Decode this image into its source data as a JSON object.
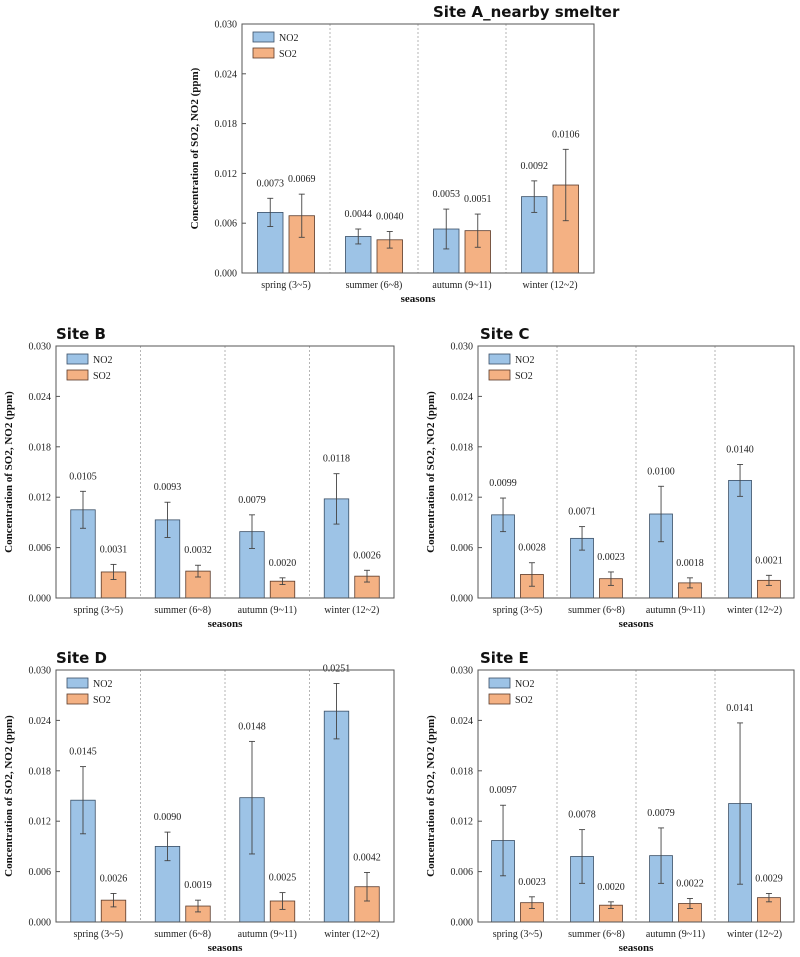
{
  "chart_data": [
    {
      "type": "bar",
      "title": "Site A_nearby smelter",
      "categories": [
        "spring (3~5)",
        "summer (6~8)",
        "autumn (9~11)",
        "winter (12~2)"
      ],
      "xlabel": "seasons",
      "ylabel": "Concentration of SO2, NO2 (ppm)",
      "ylim": [
        0,
        0.03
      ],
      "yticks": [
        "0.000",
        "0.006",
        "0.012",
        "0.018",
        "0.024",
        "0.030"
      ],
      "legend_position": "top-left",
      "series": [
        {
          "name": "NO2",
          "values": [
            0.0073,
            0.0044,
            0.0053,
            0.0092
          ],
          "labels": [
            "0.0073",
            "0.0044",
            "0.0053",
            "0.0092"
          ],
          "errors": [
            0.0017,
            0.0009,
            0.0024,
            0.0019
          ]
        },
        {
          "name": "SO2",
          "values": [
            0.0069,
            0.004,
            0.0051,
            0.0106
          ],
          "labels": [
            "0.0069",
            "0.0040",
            "0.0051",
            "0.0106"
          ],
          "errors": [
            0.0026,
            0.001,
            0.002,
            0.0043
          ]
        }
      ]
    },
    {
      "type": "bar",
      "title": "Site B",
      "categories": [
        "spring (3~5)",
        "summer (6~8)",
        "autumn (9~11)",
        "winter (12~2)"
      ],
      "xlabel": "seasons",
      "ylabel": "Concentration of SO2, NO2 (ppm)",
      "ylim": [
        0,
        0.03
      ],
      "yticks": [
        "0.000",
        "0.006",
        "0.012",
        "0.018",
        "0.024",
        "0.030"
      ],
      "legend_position": "top-left",
      "series": [
        {
          "name": "NO2",
          "values": [
            0.0105,
            0.0093,
            0.0079,
            0.0118
          ],
          "labels": [
            "0.0105",
            "0.0093",
            "0.0079",
            "0.0118"
          ],
          "errors": [
            0.0022,
            0.0021,
            0.002,
            0.003
          ]
        },
        {
          "name": "SO2",
          "values": [
            0.0031,
            0.0032,
            0.002,
            0.0026
          ],
          "labels": [
            "0.0031",
            "0.0032",
            "0.0020",
            "0.0026"
          ],
          "errors": [
            0.0009,
            0.0007,
            0.0004,
            0.0007
          ]
        }
      ]
    },
    {
      "type": "bar",
      "title": "Site C",
      "categories": [
        "spring (3~5)",
        "summer (6~8)",
        "autumn (9~11)",
        "winter (12~2)"
      ],
      "xlabel": "seasons",
      "ylabel": "Concentration of SO2, NO2 (ppm)",
      "ylim": [
        0,
        0.03
      ],
      "yticks": [
        "0.000",
        "0.006",
        "0.012",
        "0.018",
        "0.024",
        "0.030"
      ],
      "legend_position": "top-left",
      "series": [
        {
          "name": "NO2",
          "values": [
            0.0099,
            0.0071,
            0.01,
            0.014
          ],
          "labels": [
            "0.0099",
            "0.0071",
            "0.0100",
            "0.0140"
          ],
          "errors": [
            0.002,
            0.0014,
            0.0033,
            0.0019
          ]
        },
        {
          "name": "SO2",
          "values": [
            0.0028,
            0.0023,
            0.0018,
            0.0021
          ],
          "labels": [
            "0.0028",
            "0.0023",
            "0.0018",
            "0.0021"
          ],
          "errors": [
            0.0014,
            0.0008,
            0.0006,
            0.0006
          ]
        }
      ]
    },
    {
      "type": "bar",
      "title": "Site D",
      "categories": [
        "spring (3~5)",
        "summer (6~8)",
        "autumn (9~11)",
        "winter (12~2)"
      ],
      "xlabel": "seasons",
      "ylabel": "Concentration of SO2, NO2 (ppm)",
      "ylim": [
        0,
        0.03
      ],
      "yticks": [
        "0.000",
        "0.006",
        "0.012",
        "0.018",
        "0.024",
        "0.030"
      ],
      "legend_position": "top-left",
      "series": [
        {
          "name": "NO2",
          "values": [
            0.0145,
            0.009,
            0.0148,
            0.0251
          ],
          "labels": [
            "0.0145",
            "0.0090",
            "0.0148",
            "0.0251"
          ],
          "errors": [
            0.004,
            0.0017,
            0.0067,
            0.0033
          ]
        },
        {
          "name": "SO2",
          "values": [
            0.0026,
            0.0019,
            0.0025,
            0.0042
          ],
          "labels": [
            "0.0026",
            "0.0019",
            "0.0025",
            "0.0042"
          ],
          "errors": [
            0.0008,
            0.0007,
            0.001,
            0.0017
          ]
        }
      ]
    },
    {
      "type": "bar",
      "title": "Site E",
      "categories": [
        "spring (3~5)",
        "summer (6~8)",
        "autumn (9~11)",
        "winter (12~2)"
      ],
      "xlabel": "seasons",
      "ylabel": "Concentration of SO2, NO2 (ppm)",
      "ylim": [
        0,
        0.03
      ],
      "yticks": [
        "0.000",
        "0.006",
        "0.012",
        "0.018",
        "0.024",
        "0.030"
      ],
      "legend_position": "top-left",
      "series": [
        {
          "name": "NO2",
          "values": [
            0.0097,
            0.0078,
            0.0079,
            0.0141
          ],
          "labels": [
            "0.0097",
            "0.0078",
            "0.0079",
            "0.0141"
          ],
          "errors": [
            0.0042,
            0.0032,
            0.0033,
            0.0096
          ]
        },
        {
          "name": "SO2",
          "values": [
            0.0023,
            0.002,
            0.0022,
            0.0029
          ],
          "labels": [
            "0.0023",
            "0.0020",
            "0.0022",
            "0.0029"
          ],
          "errors": [
            0.0007,
            0.0004,
            0.0006,
            0.0005
          ]
        }
      ]
    }
  ],
  "colors": {
    "NO2": "#9dc3e6",
    "SO2": "#f4b183",
    "NO2_stroke": "#3a4f66",
    "SO2_stroke": "#5a3a2a"
  }
}
